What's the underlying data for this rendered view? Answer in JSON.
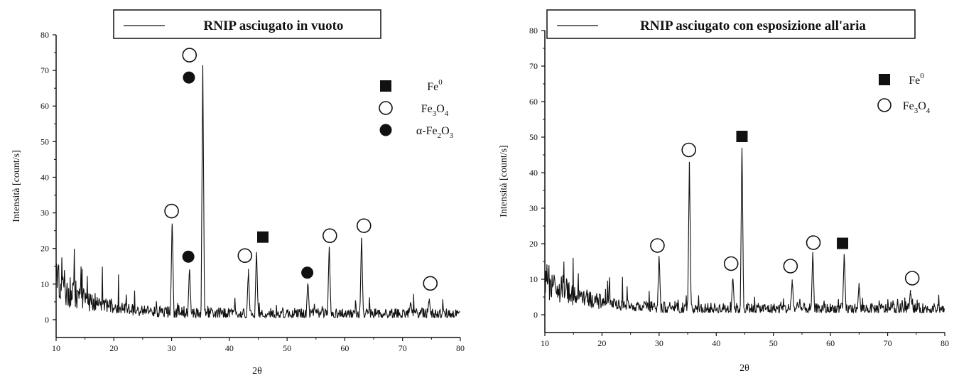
{
  "chart_data": [
    {
      "type": "line",
      "title": "RNIP asciugato in vuoto",
      "xlabel": "2θ",
      "ylabel": "Intensità [count/s]",
      "xlim": [
        10,
        80
      ],
      "ylim": [
        -5,
        80
      ],
      "xticks": [
        10,
        20,
        30,
        40,
        50,
        60,
        70,
        80
      ],
      "yticks": [
        0,
        10,
        20,
        30,
        40,
        50,
        60,
        70,
        80
      ],
      "legend_position": "top-right",
      "legend": [
        {
          "marker": "filled-square",
          "label": "Fe",
          "sup": "0"
        },
        {
          "marker": "open-circle",
          "label": "Fe3O4",
          "parts": [
            [
              "Fe",
              ""
            ],
            [
              "3",
              "sub"
            ],
            [
              "O",
              ""
            ],
            [
              "4",
              "sub"
            ]
          ]
        },
        {
          "marker": "filled-circle",
          "label": "α-Fe2O3",
          "parts": [
            [
              "α-Fe",
              ""
            ],
            [
              "2",
              "sub"
            ],
            [
              "O",
              ""
            ],
            [
              "3",
              "sub"
            ]
          ]
        }
      ],
      "peaks": [
        {
          "x": 30.1,
          "y": 27
        },
        {
          "x": 33.1,
          "y": 14
        },
        {
          "x": 35.4,
          "y": 71.5
        },
        {
          "x": 43.3,
          "y": 13
        },
        {
          "x": 44.7,
          "y": 19
        },
        {
          "x": 53.6,
          "y": 10
        },
        {
          "x": 57.3,
          "y": 20.5
        },
        {
          "x": 62.9,
          "y": 23
        },
        {
          "x": 71.4,
          "y": 4
        },
        {
          "x": 74.6,
          "y": 5
        }
      ],
      "markers": [
        {
          "type": "open-circle",
          "x": 30.0,
          "y": 30.5
        },
        {
          "type": "open-circle",
          "x": 33.1,
          "y": 74.3
        },
        {
          "type": "filled-circle",
          "x": 33.0,
          "y": 68.0
        },
        {
          "type": "filled-circle",
          "x": 32.9,
          "y": 17.7
        },
        {
          "type": "open-circle",
          "x": 42.7,
          "y": 18.0
        },
        {
          "type": "filled-square",
          "x": 45.8,
          "y": 23.2
        },
        {
          "type": "filled-circle",
          "x": 53.5,
          "y": 13.2
        },
        {
          "type": "open-circle",
          "x": 57.4,
          "y": 23.6
        },
        {
          "type": "open-circle",
          "x": 63.3,
          "y": 26.4
        },
        {
          "type": "open-circle",
          "x": 74.8,
          "y": 10.2
        }
      ]
    },
    {
      "type": "line",
      "title": "RNIP asciugato con esposizione all'aria",
      "xlabel": "2θ",
      "ylabel": "Intensità [count/s]",
      "xlim": [
        10,
        80
      ],
      "ylim": [
        -5,
        80
      ],
      "xticks": [
        10,
        20,
        30,
        40,
        50,
        60,
        70,
        80
      ],
      "yticks": [
        0,
        10,
        20,
        30,
        40,
        50,
        60,
        70,
        80
      ],
      "legend_position": "top-right",
      "legend": [
        {
          "marker": "filled-square",
          "label": "Fe",
          "sup": "0"
        },
        {
          "marker": "open-circle",
          "label": "Fe3O4",
          "parts": [
            [
              "Fe",
              ""
            ],
            [
              "3",
              "sub"
            ],
            [
              "O",
              ""
            ],
            [
              "4",
              "sub"
            ]
          ]
        }
      ],
      "peaks": [
        {
          "x": 30.0,
          "y": 16
        },
        {
          "x": 35.3,
          "y": 43
        },
        {
          "x": 42.9,
          "y": 10
        },
        {
          "x": 44.5,
          "y": 47
        },
        {
          "x": 53.3,
          "y": 9
        },
        {
          "x": 56.9,
          "y": 17
        },
        {
          "x": 62.4,
          "y": 17
        },
        {
          "x": 65.0,
          "y": 8
        },
        {
          "x": 74.0,
          "y": 6
        }
      ],
      "markers": [
        {
          "type": "open-circle",
          "x": 29.7,
          "y": 19.5
        },
        {
          "type": "open-circle",
          "x": 35.2,
          "y": 46.4
        },
        {
          "type": "open-circle",
          "x": 42.6,
          "y": 14.4
        },
        {
          "type": "filled-square",
          "x": 44.5,
          "y": 50.2
        },
        {
          "type": "open-circle",
          "x": 53.0,
          "y": 13.7
        },
        {
          "type": "open-circle",
          "x": 57.0,
          "y": 20.3
        },
        {
          "type": "filled-square",
          "x": 62.1,
          "y": 20.1
        },
        {
          "type": "open-circle",
          "x": 74.3,
          "y": 10.3
        }
      ]
    }
  ]
}
